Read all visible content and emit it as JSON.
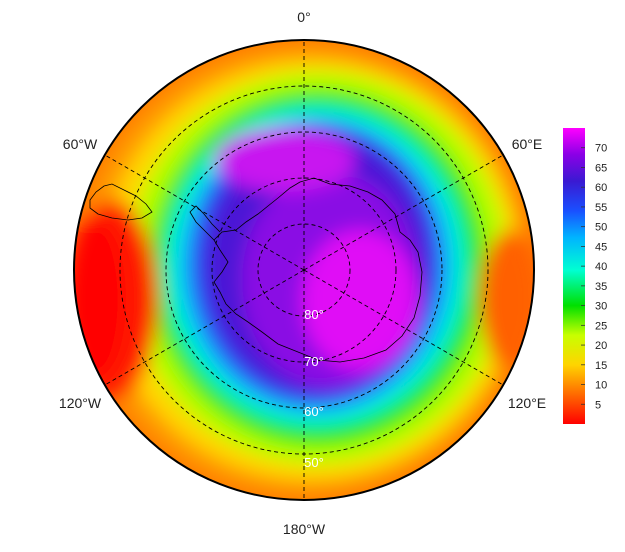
{
  "map": {
    "projection": "south-polar-stereographic",
    "longitude_labels": {
      "top": "0°",
      "upper_left": "60°W",
      "upper_right": "60°E",
      "lower_left": "120°W",
      "lower_right": "120°E",
      "bottom": "180°W"
    },
    "latitude_labels": [
      "80°",
      "70°",
      "60°",
      "50°"
    ],
    "latitude_circles_deg": [
      80,
      70,
      60,
      50
    ],
    "meridians_deg": [
      0,
      60,
      120,
      180,
      240,
      300
    ],
    "outer_boundary_lat": 40,
    "gridline_style": "dashed",
    "continent": "Antarctica outline with South America tip",
    "colormap": [
      "#ff0000",
      "#ff6a00",
      "#ffd400",
      "#c8ff00",
      "#00e000",
      "#00ffd2",
      "#00b4ff",
      "#1a50ff",
      "#3a1ad2",
      "#8a00e6",
      "#ff00ff"
    ],
    "field_description": "minimum values (red/orange) at outer ring with red patch toward 90°W; maximum values (magenta) over Antarctica and the polar cap"
  },
  "colorbar": {
    "min": 0,
    "max": 75,
    "ticks": [
      "5",
      "10",
      "15",
      "20",
      "25",
      "30",
      "35",
      "40",
      "45",
      "50",
      "55",
      "60",
      "65",
      "70"
    ]
  }
}
